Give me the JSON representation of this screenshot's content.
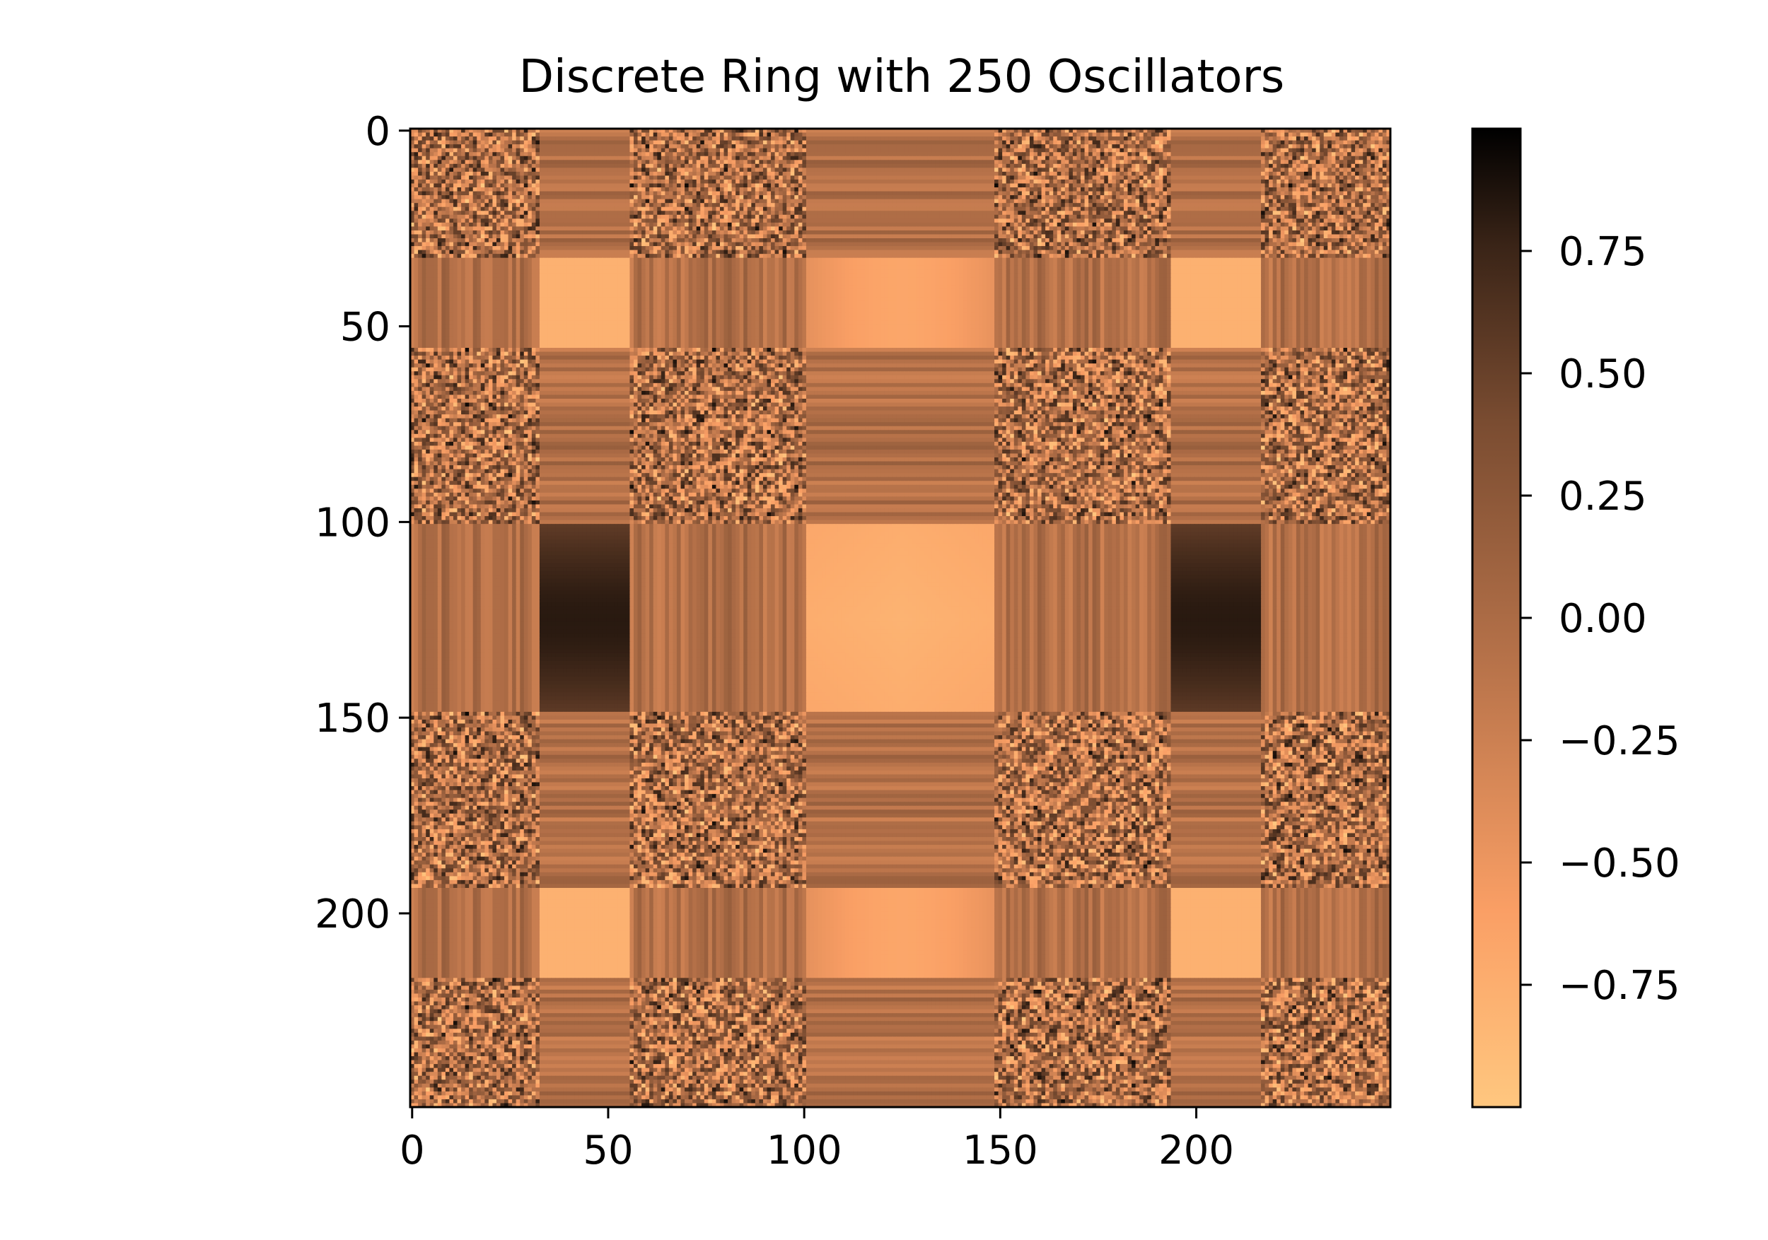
{
  "chart_data": {
    "type": "heatmap",
    "title": "Discrete Ring with 250 Oscillators",
    "xlabel": "",
    "ylabel": "",
    "n": 250,
    "x_ticks": [
      0,
      50,
      100,
      150,
      200
    ],
    "y_ticks": [
      0,
      50,
      100,
      150,
      200
    ],
    "y_axis_inverted": true,
    "grid": false,
    "colormap": "copper_r",
    "color_range": [
      -1.0,
      1.0
    ],
    "colorbar_ticks": [
      0.75,
      0.5,
      0.25,
      0.0,
      -0.25,
      -0.5,
      -0.75
    ],
    "colorbar_labels": [
      "0.75",
      "0.50",
      "0.25",
      "0.00",
      "−0.25",
      "−0.50",
      "−0.75"
    ],
    "segment_boundaries": [
      0,
      33,
      56,
      101,
      149,
      194,
      217,
      250
    ],
    "segment_types": [
      "mixed",
      "uniform",
      "mixed",
      "uniform",
      "mixed",
      "uniform",
      "mixed"
    ],
    "colors": {
      "low": "#ffc77f",
      "high": "#000000"
    }
  }
}
